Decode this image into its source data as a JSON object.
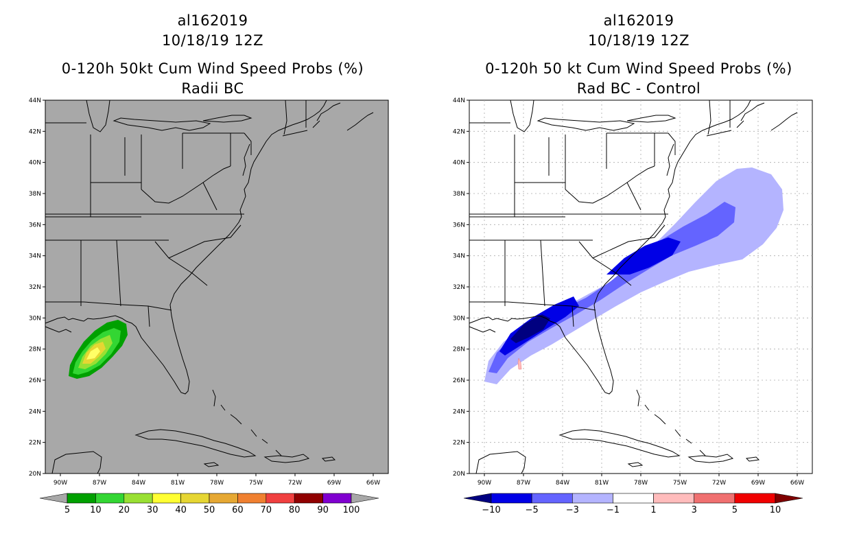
{
  "left_panel": {
    "storm_id": "al162019",
    "date": "10/18/19 12Z",
    "product": "0-120h 50kt Cum Wind Speed Probs (%)",
    "subtitle": "Radii BC",
    "land_color": "#a8a8a8",
    "colorbar": {
      "labels": [
        "5",
        "10",
        "20",
        "30",
        "40",
        "50",
        "60",
        "70",
        "80",
        "90",
        "100"
      ],
      "colors": [
        "#a8a8a8",
        "#00a000",
        "#33d633",
        "#99e033",
        "#ffff33",
        "#e6d633",
        "#e6a833",
        "#f08030",
        "#f04040",
        "#900000",
        "#8000d0",
        "#a8a8a8"
      ]
    }
  },
  "right_panel": {
    "storm_id": "al162019",
    "date": "10/18/19 12Z",
    "product": "0-120h 50 kt Cum Wind Speed Probs (%)",
    "subtitle": "Rad BC - Control",
    "colorbar": {
      "labels": [
        "−10",
        "−5",
        "−3",
        "−1",
        "1",
        "3",
        "5",
        "10"
      ],
      "colors": [
        "#000080",
        "#0000e6",
        "#6464ff",
        "#b4b4ff",
        "#ffffff",
        "#ffbcbc",
        "#f07070",
        "#f00000",
        "#800000"
      ]
    }
  },
  "axes": {
    "lat_labels": [
      "44N",
      "42N",
      "40N",
      "38N",
      "36N",
      "34N",
      "32N",
      "30N",
      "28N",
      "26N",
      "24N",
      "22N",
      "20N"
    ],
    "lon_labels": [
      "90W",
      "87W",
      "84W",
      "81W",
      "78W",
      "75W",
      "72W",
      "69W",
      "66W"
    ]
  }
}
